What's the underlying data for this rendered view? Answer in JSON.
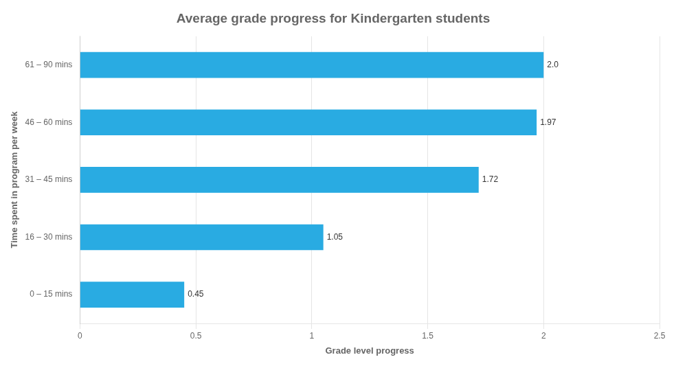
{
  "chart_data": {
    "type": "bar",
    "orientation": "horizontal",
    "title": "Average grade progress for Kindergarten students",
    "xlabel": "Grade level progress",
    "ylabel": "Time spent in program per week",
    "categories": [
      "0 – 15 mins",
      "16 – 30 mins",
      "31 – 45 mins",
      "46 – 60 mins",
      "61 – 90 mins"
    ],
    "values": [
      0.45,
      1.05,
      1.72,
      1.97,
      2.0
    ],
    "value_labels": [
      "0.45",
      "1.05",
      "1.72",
      "1.97",
      "2.0"
    ],
    "data_labels": true,
    "color": "#29ABE2",
    "xlim": [
      0,
      2.5
    ],
    "xticks": [
      0,
      0.5,
      1,
      1.5,
      2,
      2.5
    ],
    "grid": true
  }
}
